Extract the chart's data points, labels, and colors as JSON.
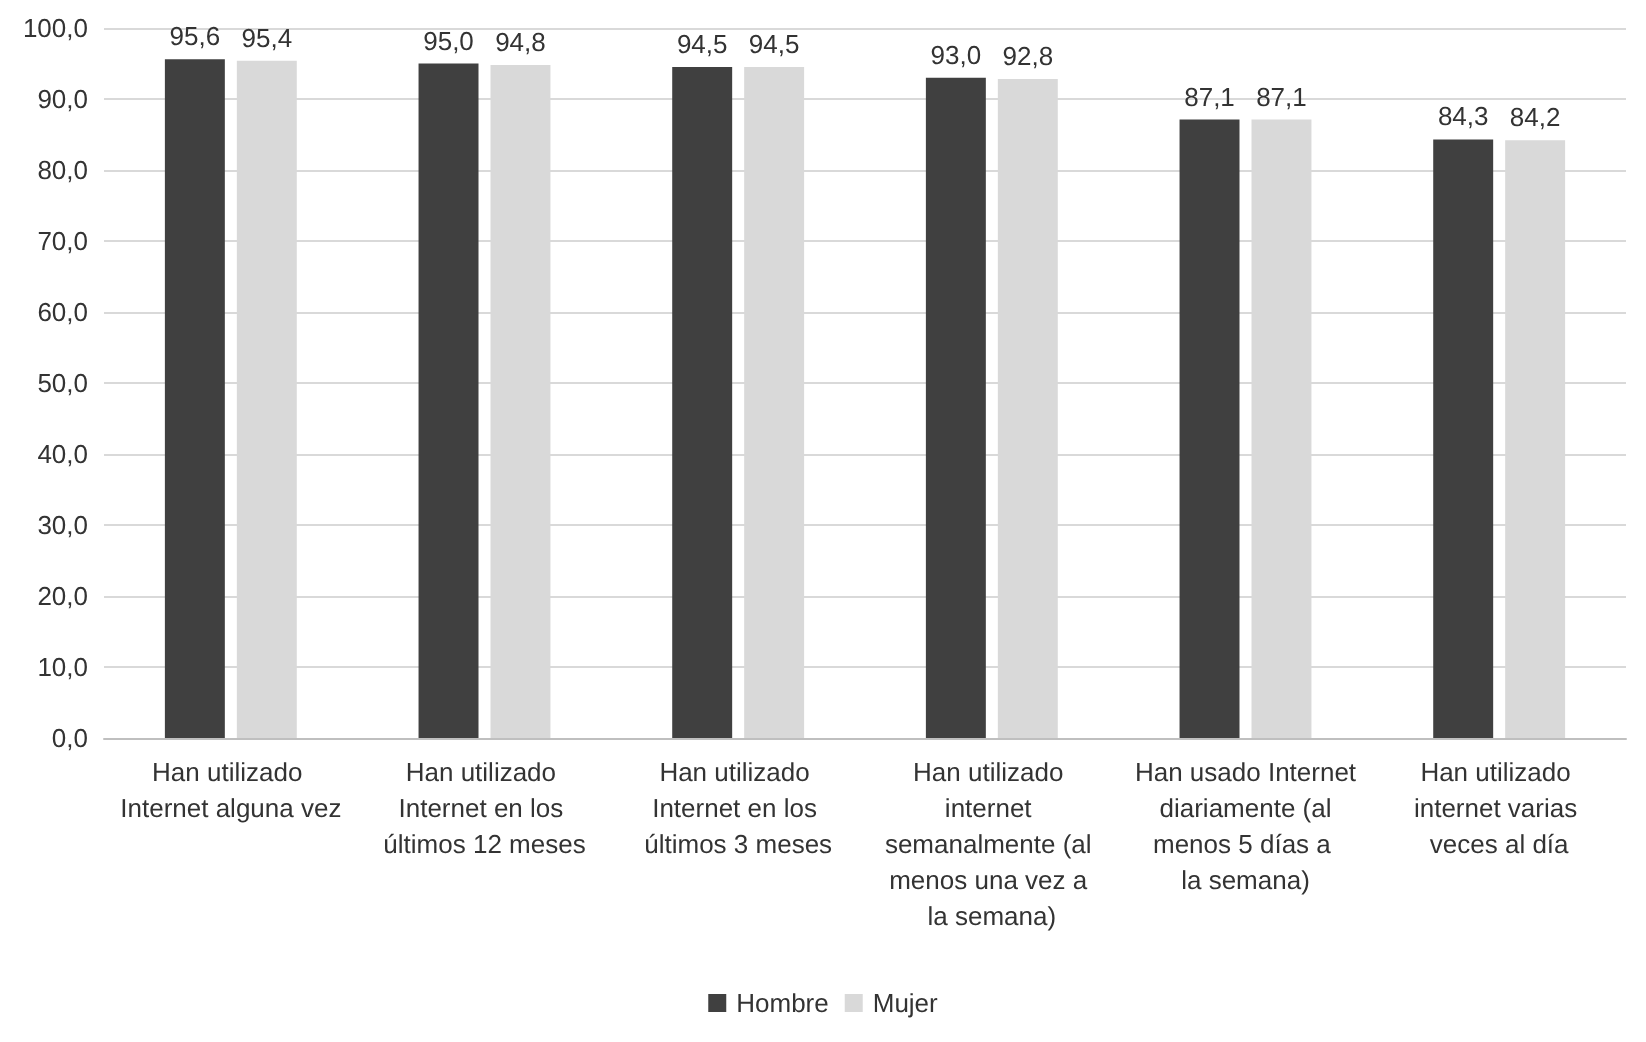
{
  "chart_data": {
    "type": "bar",
    "categories": [
      "Han utilizado Internet alguna vez",
      "Han utilizado Internet en los últimos 12 meses",
      "Han utilizado Internet en los últimos 3 meses",
      "Han utilizado internet semanalmente (al menos una vez a la semana)",
      "Han usado Internet diariamente (al menos 5 días a la semana)",
      "Han utilizado internet varias veces al día"
    ],
    "series": [
      {
        "name": "Hombre",
        "color": "#404040",
        "values": [
          95.6,
          95.0,
          94.5,
          93.0,
          87.1,
          84.3
        ],
        "value_labels": [
          "95,6",
          "95,0",
          "94,5",
          "93,0",
          "87,1",
          "84,3"
        ]
      },
      {
        "name": "Mujer",
        "color": "#d9d9d9",
        "values": [
          95.4,
          94.8,
          94.5,
          92.8,
          87.1,
          84.2
        ],
        "value_labels": [
          "95,4",
          "94,8",
          "94,5",
          "92,8",
          "87,1",
          "84,2"
        ]
      }
    ],
    "ylim": [
      0,
      100
    ],
    "yticks": [
      {
        "value": 0,
        "label": "0,0"
      },
      {
        "value": 10,
        "label": "10,0"
      },
      {
        "value": 20,
        "label": "20,0"
      },
      {
        "value": 30,
        "label": "30,0"
      },
      {
        "value": 40,
        "label": "40,0"
      },
      {
        "value": 50,
        "label": "50,0"
      },
      {
        "value": 60,
        "label": "60,0"
      },
      {
        "value": 70,
        "label": "70,0"
      },
      {
        "value": 80,
        "label": "80,0"
      },
      {
        "value": 90,
        "label": "90,0"
      },
      {
        "value": 100,
        "label": "100,0"
      }
    ],
    "grid": "y",
    "legend": "bottom"
  }
}
